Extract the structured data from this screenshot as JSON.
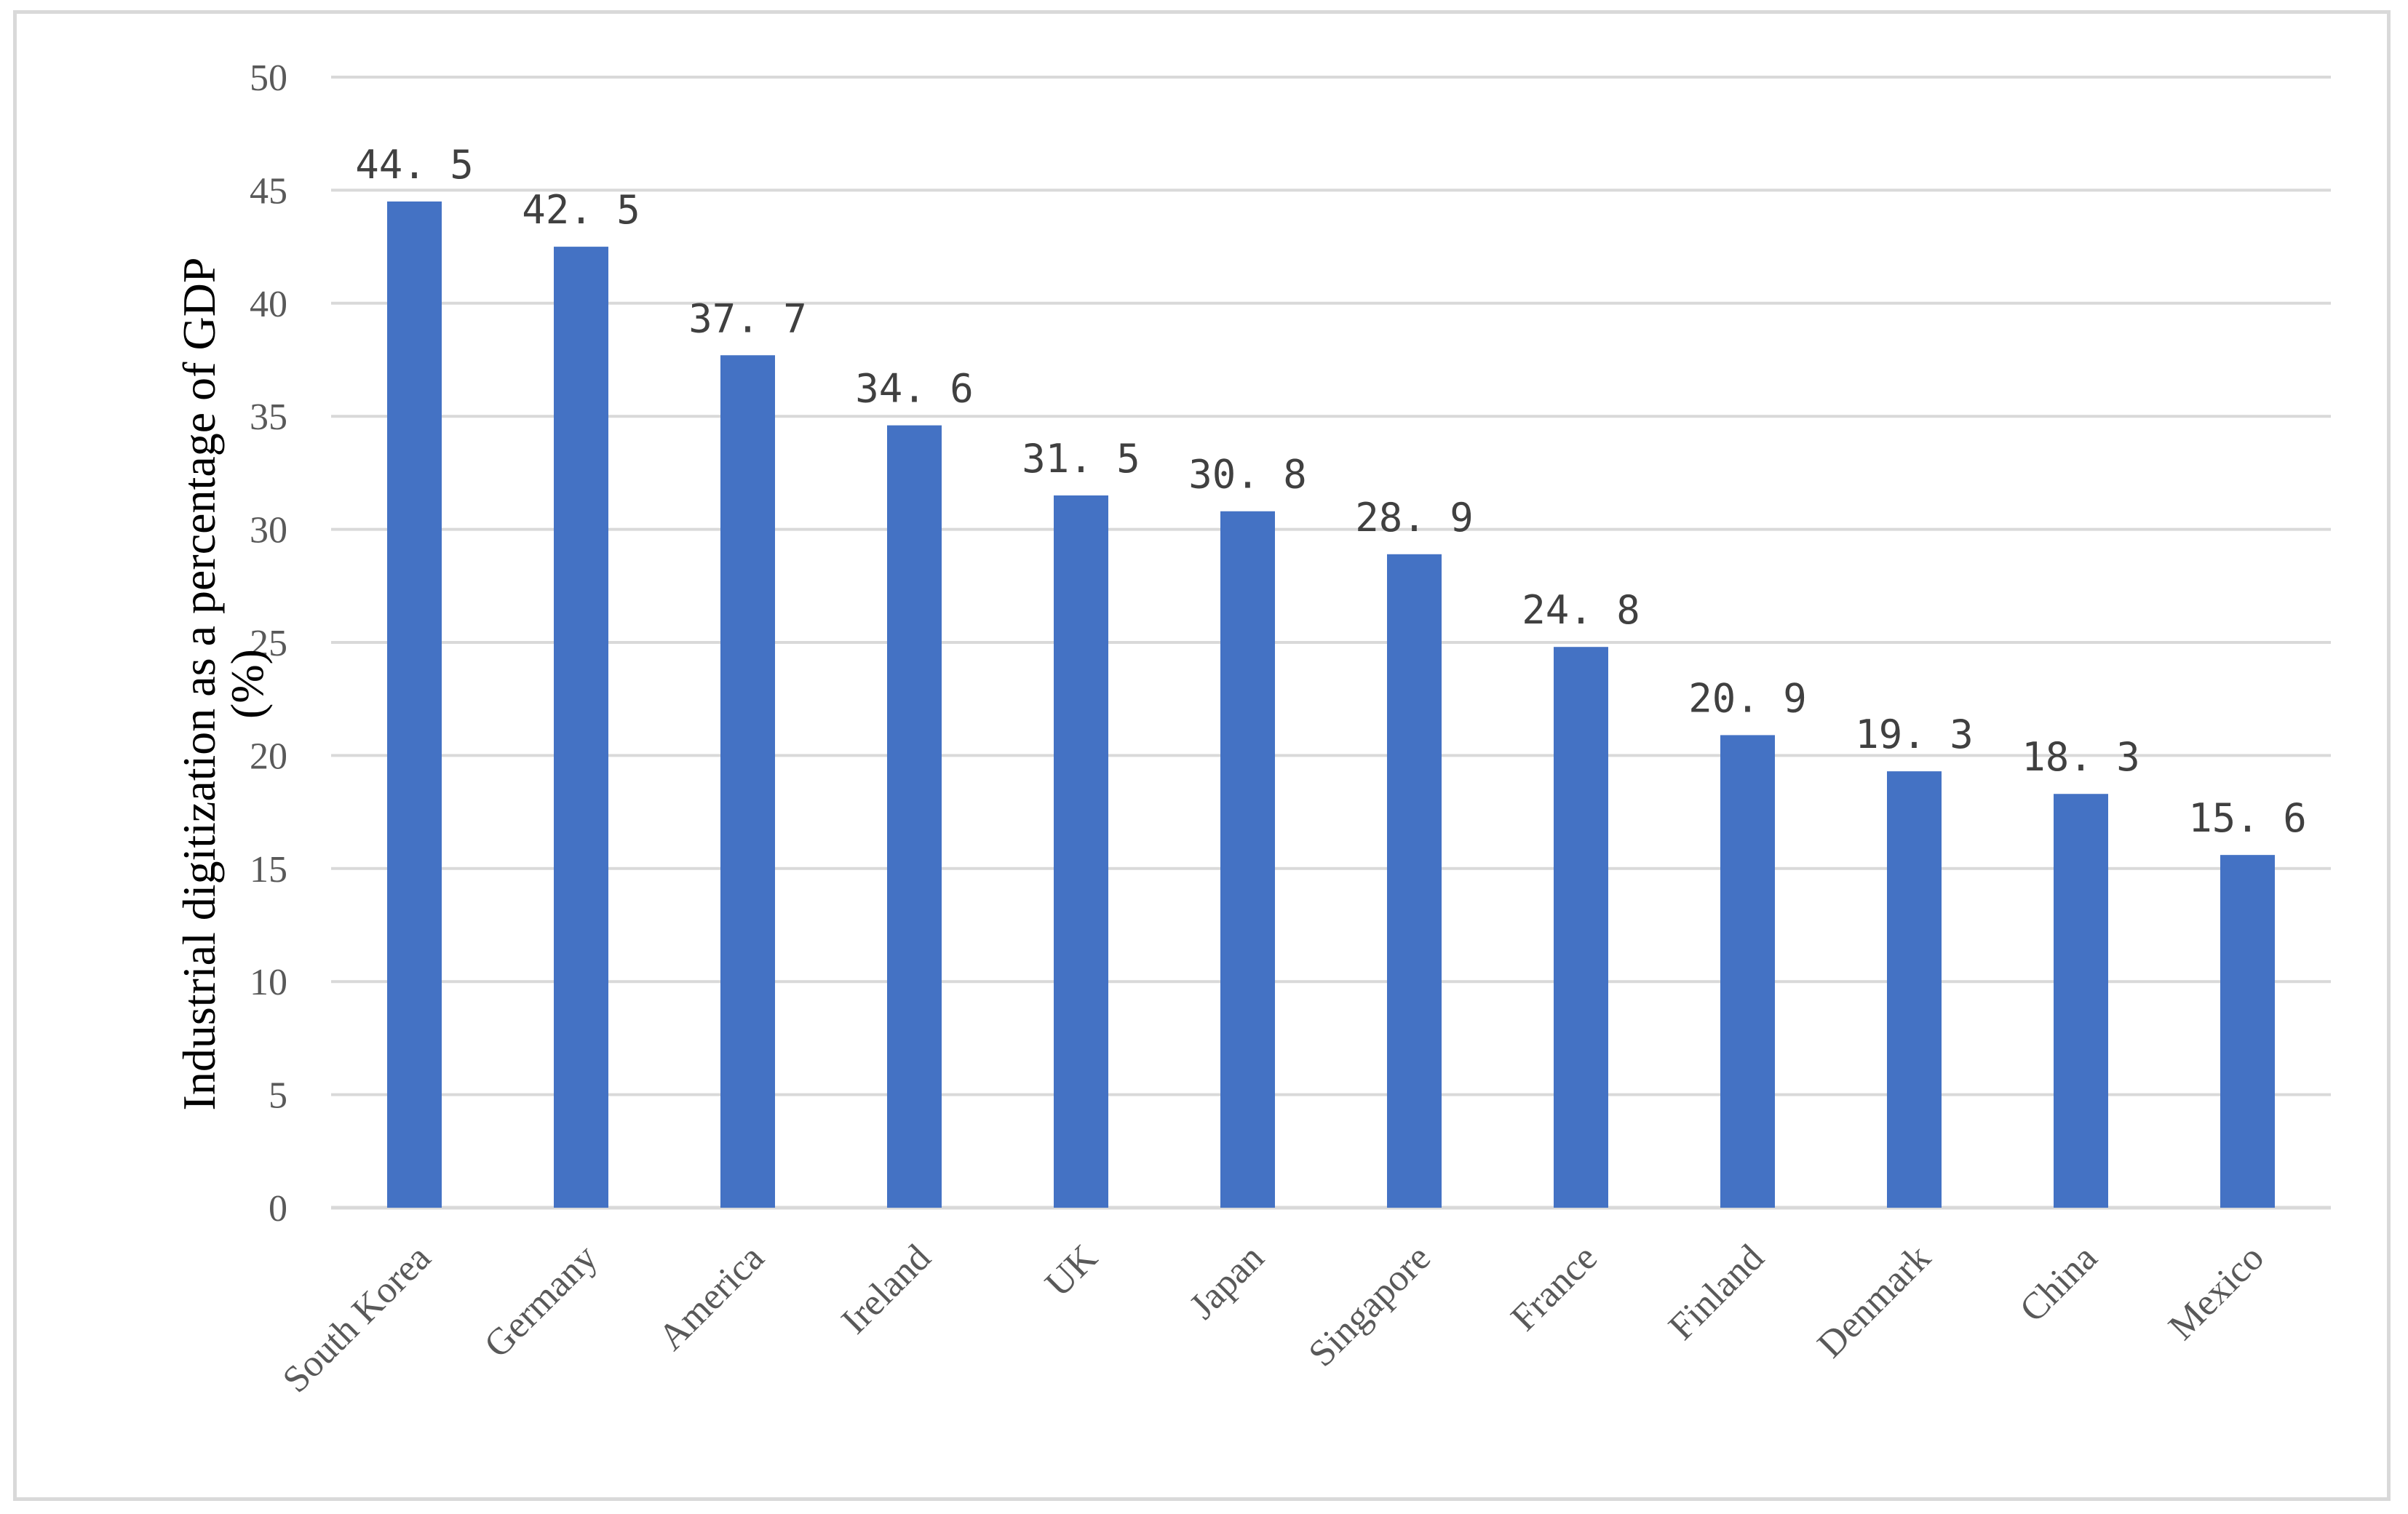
{
  "chart_data": {
    "type": "bar",
    "categories": [
      "South Korea",
      "Germany",
      "America",
      "Ireland",
      "UK",
      "Japan",
      "Singapore",
      "France",
      "Finland",
      "Denmark",
      "China",
      "Mexico"
    ],
    "values": [
      44.5,
      42.5,
      37.7,
      34.6,
      31.5,
      30.8,
      28.9,
      24.8,
      20.9,
      19.3,
      18.3,
      15.6
    ],
    "data_labels": [
      "44. 5",
      "42. 5",
      "37. 7",
      "34. 6",
      "31. 5",
      "30. 8",
      "28. 9",
      "24. 8",
      "20. 9",
      "19. 3",
      "18. 3",
      "15. 6"
    ],
    "title": "",
    "xlabel": "",
    "ylabel": "Industrial digitization as a percentage of GDP (%)",
    "ylabel_lines": [
      "Industrial digitization as a percentage of GDP",
      "(%)"
    ],
    "ylim": [
      0,
      50
    ],
    "yticks": [
      "0",
      "5",
      "10",
      "15",
      "20",
      "25",
      "30",
      "35",
      "40",
      "45",
      "50"
    ],
    "grid": true,
    "legend": "none",
    "bar_color": "#4472c4",
    "grid_color": "#d9d9d9"
  }
}
